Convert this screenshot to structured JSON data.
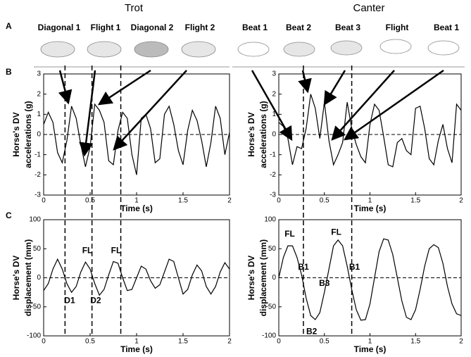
{
  "figure": {
    "columns": [
      "Trot",
      "Canter"
    ],
    "panels": [
      "A",
      "B",
      "C"
    ],
    "phases": [
      [
        "Diagonal 1",
        "Flight 1",
        "Diagonal  2",
        "Flight 2"
      ],
      [
        "Beat 1",
        "Beat 2",
        "Beat 3",
        "Flight",
        "Beat 1"
      ]
    ]
  },
  "chart_data": [
    {
      "type": "line",
      "ylabel": [
        "Horse's DV",
        "accelerations  (g)"
      ],
      "xlabel": "Time (s)",
      "color": "#000000",
      "x": [
        0,
        0.05,
        0.1,
        0.15,
        0.2,
        0.25,
        0.3,
        0.35,
        0.4,
        0.45,
        0.5,
        0.55,
        0.6,
        0.65,
        0.7,
        0.75,
        0.8,
        0.85,
        0.9,
        0.95,
        1,
        1.05,
        1.1,
        1.15,
        1.2,
        1.25,
        1.3,
        1.35,
        1.4,
        1.45,
        1.5,
        1.55,
        1.6,
        1.65,
        1.7,
        1.75,
        1.8,
        1.85,
        1.9,
        1.95,
        2
      ],
      "values": [
        0.5,
        1.1,
        0.6,
        -0.9,
        -1.4,
        -0.3,
        1.4,
        0.8,
        -0.5,
        -1.6,
        -0.6,
        1.5,
        1.2,
        0.6,
        -1.3,
        -1.5,
        0.2,
        1.1,
        0.8,
        -1.0,
        -2.0,
        0.8,
        1.0,
        0.3,
        -1.4,
        -1.2,
        1.0,
        1.4,
        0.5,
        -0.8,
        -1.5,
        0.2,
        1.2,
        0.7,
        -0.3,
        -1.6,
        -0.4,
        1.4,
        0.8,
        -1.0,
        0.1
      ],
      "xlim": [
        0,
        2
      ],
      "xticks": [
        0,
        0.5,
        1,
        1.5,
        2
      ],
      "ylim": [
        -3,
        3
      ],
      "yticks": [
        -3,
        -2,
        -1,
        0,
        1,
        2,
        3
      ],
      "reference_line": 0,
      "vlines": [
        0.23,
        0.52,
        0.83
      ]
    },
    {
      "type": "line",
      "ylabel": [
        "Horse's DV",
        "accelerations  (g)"
      ],
      "xlabel": "Time (s)",
      "color": "#000000",
      "x": [
        0,
        0.05,
        0.1,
        0.15,
        0.2,
        0.25,
        0.3,
        0.35,
        0.4,
        0.45,
        0.5,
        0.55,
        0.6,
        0.65,
        0.7,
        0.75,
        0.8,
        0.85,
        0.9,
        0.95,
        1,
        1.05,
        1.1,
        1.15,
        1.2,
        1.25,
        1.3,
        1.35,
        1.4,
        1.45,
        1.5,
        1.55,
        1.6,
        1.65,
        1.7,
        1.75,
        1.8,
        1.85,
        1.9,
        1.95,
        2
      ],
      "values": [
        0.6,
        0.4,
        -0.2,
        -1.5,
        -0.6,
        -0.7,
        0.3,
        2.0,
        1.3,
        -0.2,
        1.6,
        -0.3,
        -1.5,
        -1.0,
        -0.4,
        1.6,
        0.3,
        -0.5,
        -1.1,
        -1.4,
        0.5,
        1.5,
        1.2,
        -0.1,
        -1.5,
        -1.6,
        -0.4,
        -0.2,
        -0.8,
        -1.0,
        1.3,
        1.4,
        0.3,
        -1.2,
        -1.5,
        -0.3,
        0.5,
        -0.7,
        -1.4,
        1.5,
        1.2
      ],
      "xlim": [
        0,
        2
      ],
      "xticks": [
        0,
        0.5,
        1,
        1.5,
        2
      ],
      "ylim": [
        -3,
        3
      ],
      "yticks": [
        -3,
        -2,
        -1,
        0,
        1,
        2,
        3
      ],
      "reference_line": 0,
      "vlines": [
        0.27,
        0.8
      ]
    },
    {
      "type": "line",
      "ylabel": [
        "Horse's DV",
        "displacement (mm)"
      ],
      "xlabel": "Time (s)",
      "color": "#000000",
      "x": [
        0,
        0.05,
        0.1,
        0.15,
        0.2,
        0.25,
        0.3,
        0.35,
        0.4,
        0.45,
        0.5,
        0.55,
        0.6,
        0.65,
        0.7,
        0.75,
        0.8,
        0.85,
        0.9,
        0.95,
        1,
        1.05,
        1.1,
        1.15,
        1.2,
        1.25,
        1.3,
        1.35,
        1.4,
        1.45,
        1.5,
        1.55,
        1.6,
        1.65,
        1.7,
        1.75,
        1.8,
        1.85,
        1.9,
        1.95,
        2
      ],
      "values": [
        -22,
        -10,
        15,
        32,
        15,
        -10,
        -25,
        -15,
        10,
        27,
        15,
        -10,
        -30,
        -20,
        5,
        28,
        25,
        0,
        -22,
        -20,
        0,
        20,
        15,
        -5,
        -18,
        -12,
        10,
        32,
        28,
        0,
        -28,
        -20,
        5,
        22,
        12,
        -15,
        -28,
        -15,
        10,
        26,
        15
      ],
      "xlim": [
        0,
        2
      ],
      "xticks": [
        0,
        0.5,
        1,
        1.5,
        2
      ],
      "ylim": [
        -100,
        100
      ],
      "yticks": [
        -100,
        -50,
        0,
        50,
        100
      ],
      "reference_line": 0,
      "annotations": [
        "FL",
        "FL",
        "D1",
        "D2"
      ]
    },
    {
      "type": "line",
      "ylabel": [
        "Horse's DV",
        "displacement (mm)"
      ],
      "xlabel": "Time (s)",
      "color": "#000000",
      "x": [
        0,
        0.05,
        0.1,
        0.15,
        0.2,
        0.25,
        0.3,
        0.35,
        0.4,
        0.45,
        0.5,
        0.55,
        0.6,
        0.65,
        0.7,
        0.75,
        0.8,
        0.85,
        0.9,
        0.95,
        1,
        1.05,
        1.1,
        1.15,
        1.2,
        1.25,
        1.3,
        1.35,
        1.4,
        1.45,
        1.5,
        1.55,
        1.6,
        1.65,
        1.7,
        1.75,
        1.8,
        1.85,
        1.9,
        1.95,
        2
      ],
      "values": [
        0,
        35,
        55,
        55,
        35,
        5,
        -35,
        -65,
        -72,
        -60,
        -25,
        15,
        55,
        65,
        55,
        20,
        -20,
        -55,
        -73,
        -72,
        -45,
        0,
        45,
        67,
        65,
        40,
        0,
        -40,
        -68,
        -72,
        -55,
        -20,
        20,
        50,
        57,
        52,
        25,
        -15,
        -45,
        -62,
        -65
      ],
      "xlim": [
        0,
        2
      ],
      "xticks": [
        0,
        0.5,
        1,
        1.5,
        2
      ],
      "ylim": [
        -100,
        100
      ],
      "yticks": [
        -100,
        -50,
        0,
        50,
        100
      ],
      "reference_line": 0,
      "annotations": [
        "FL",
        "FL",
        "B1",
        "B1",
        "B3",
        "B2"
      ]
    }
  ]
}
